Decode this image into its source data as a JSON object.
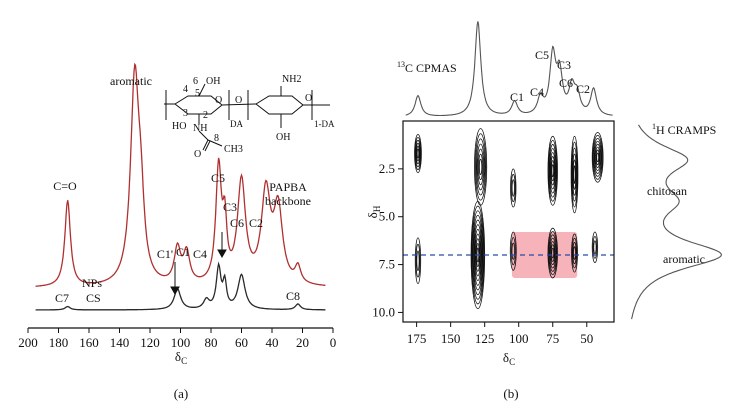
{
  "panels": {
    "a": {
      "label": "(a)"
    },
    "b": {
      "label": "(b)"
    }
  },
  "colors": {
    "np_trace": "#b03030",
    "cs_trace": "#2a2a2a",
    "trace_dark": "#111111",
    "highlight": "#f4a6ae",
    "dashed_line": "#2b4aa8"
  },
  "chart_data": [
    {
      "panel": "a",
      "type": "line",
      "xlabel": "δC",
      "ylabel": "",
      "xlim": [
        200,
        0
      ],
      "x_ticks": [
        "200",
        "180",
        "160",
        "140",
        "120",
        "100",
        "80",
        "60",
        "40",
        "20",
        "0"
      ],
      "series": [
        {
          "name": "NPs",
          "label": "NPs",
          "peaks": [
            {
              "ppm": 174,
              "height": 0.42,
              "width": 2.2
            },
            {
              "ppm": 130,
              "height": 1.0,
              "width": 3.3
            },
            {
              "ppm": 126,
              "height": 0.3,
              "width": 2.5
            },
            {
              "ppm": 102,
              "height": 0.17,
              "width": 2.5
            },
            {
              "ppm": 96,
              "height": 0.15,
              "width": 2.5
            },
            {
              "ppm": 75,
              "height": 0.56,
              "width": 2.2
            },
            {
              "ppm": 71,
              "height": 0.26,
              "width": 1.6
            },
            {
              "ppm": 60,
              "height": 0.5,
              "width": 3.2
            },
            {
              "ppm": 44,
              "height": 0.44,
              "width": 3.6
            },
            {
              "ppm": 36,
              "height": 0.36,
              "width": 3.5
            },
            {
              "ppm": 23,
              "height": 0.08,
              "width": 2.2
            }
          ]
        },
        {
          "name": "CS",
          "label": "CS",
          "peaks": [
            {
              "ppm": 174,
              "height": 0.03,
              "width": 2.0
            },
            {
              "ppm": 102,
              "height": 0.18,
              "width": 2.6
            },
            {
              "ppm": 83,
              "height": 0.08,
              "width": 2.2
            },
            {
              "ppm": 75,
              "height": 0.36,
              "width": 1.8
            },
            {
              "ppm": 71,
              "height": 0.22,
              "width": 1.4
            },
            {
              "ppm": 60,
              "height": 0.3,
              "width": 2.8
            },
            {
              "ppm": 23,
              "height": 0.05,
              "width": 2.0
            }
          ]
        }
      ],
      "annotations": [
        {
          "text": "aromatic",
          "ppm": 130
        },
        {
          "text": "C=O",
          "ppm": 174
        },
        {
          "text": "C1'",
          "ppm": 103
        },
        {
          "text": "C1",
          "ppm": 97
        },
        {
          "text": "C4",
          "ppm": 84
        },
        {
          "text": "C5",
          "ppm": 76
        },
        {
          "text": "C3",
          "ppm": 71
        },
        {
          "text": "C6",
          "ppm": 63
        },
        {
          "text": "C2",
          "ppm": 55
        },
        {
          "text": "PAPBA",
          "ppm": 38
        },
        {
          "text": "backbone",
          "ppm": 38
        },
        {
          "text": "C7",
          "ppm": 174
        },
        {
          "text": "C8",
          "ppm": 23
        }
      ],
      "structure": {
        "atom_labels": [
          "4",
          "6",
          "OH",
          "5",
          "3",
          "O",
          "2",
          "NH",
          "HO",
          "8",
          "O",
          "CH3",
          "NH2",
          "O",
          "OH",
          "O"
        ],
        "subscripts": [
          "DA",
          "1-DA"
        ]
      }
    },
    {
      "panel": "b",
      "type": "heatmap",
      "xlabel": "δC",
      "ylabel": "δH",
      "xlim": [
        185,
        30
      ],
      "ylim": [
        0,
        10.5
      ],
      "x_ticks": [
        "175",
        "150",
        "125",
        "100",
        "75",
        "50"
      ],
      "y_ticks": [
        "2.5",
        "5.0",
        "7.5",
        "10.0"
      ],
      "top_projection": {
        "label": "13C CPMAS",
        "peaks": [
          {
            "ppm": 174,
            "height": 0.22
          },
          {
            "ppm": 130,
            "height": 1.0
          },
          {
            "ppm": 103,
            "height": 0.15
          },
          {
            "ppm": 84,
            "height": 0.18
          },
          {
            "ppm": 75,
            "height": 0.62
          },
          {
            "ppm": 70,
            "height": 0.42
          },
          {
            "ppm": 61,
            "height": 0.28
          },
          {
            "ppm": 57,
            "height": 0.2
          },
          {
            "ppm": 45,
            "height": 0.28
          }
        ],
        "labels": [
          "C1",
          "C4",
          "C5",
          "C3",
          "C6",
          "C2"
        ]
      },
      "side_projection": {
        "label": "1H CRAMPS",
        "regions": [
          "chitosan",
          "aromatic"
        ],
        "peaks": [
          {
            "ppm": 2.0,
            "height": 0.6
          },
          {
            "ppm": 4.2,
            "height": 0.42
          },
          {
            "ppm": 7.0,
            "height": 1.0
          }
        ]
      },
      "contour_spots": [
        {
          "c": 174,
          "h": 1.7,
          "w": 2.5,
          "hh": 1.0,
          "n": 6
        },
        {
          "c": 174,
          "h": 7.3,
          "w": 2.0,
          "hh": 1.2,
          "n": 3
        },
        {
          "c": 130,
          "h": 7.0,
          "w": 5.0,
          "hh": 2.8,
          "n": 11
        },
        {
          "c": 128,
          "h": 2.4,
          "w": 4.5,
          "hh": 2.0,
          "n": 7
        },
        {
          "c": 104,
          "h": 3.5,
          "w": 2.0,
          "hh": 1.0,
          "n": 3
        },
        {
          "c": 104,
          "h": 6.8,
          "w": 2.2,
          "hh": 1.0,
          "n": 3
        },
        {
          "c": 75,
          "h": 2.6,
          "w": 3.5,
          "hh": 1.8,
          "n": 8
        },
        {
          "c": 75,
          "h": 6.9,
          "w": 3.5,
          "hh": 1.3,
          "n": 7
        },
        {
          "c": 59,
          "h": 2.8,
          "w": 2.5,
          "hh": 2.0,
          "n": 6
        },
        {
          "c": 59,
          "h": 6.9,
          "w": 2.2,
          "hh": 1.0,
          "n": 4
        },
        {
          "c": 42,
          "h": 1.9,
          "w": 4.0,
          "hh": 1.3,
          "n": 8
        },
        {
          "c": 44,
          "h": 6.6,
          "w": 2.0,
          "hh": 0.8,
          "n": 3
        }
      ],
      "highlight_box": {
        "c_from": 105,
        "c_to": 57,
        "h_from": 5.8,
        "h_to": 8.2
      },
      "dashed_line_h": 7.0
    }
  ]
}
